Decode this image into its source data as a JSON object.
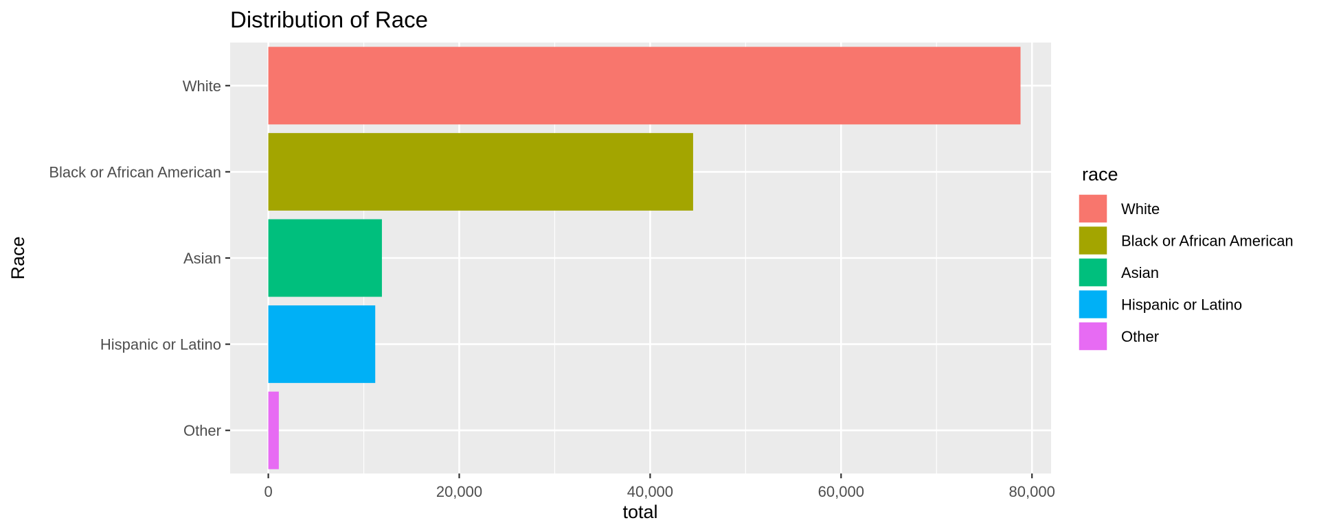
{
  "chart_data": {
    "type": "bar",
    "orientation": "horizontal",
    "title": "Distribution of Race",
    "xlabel": "total",
    "ylabel": "Race",
    "categories": [
      "White",
      "Black or African American",
      "Asian",
      "Hispanic or Latino",
      "Other"
    ],
    "values": [
      78800,
      44500,
      11900,
      11200,
      1100
    ],
    "colors": [
      "#F8766D",
      "#A3A500",
      "#00BF7D",
      "#00B0F6",
      "#E76BF3"
    ],
    "xlim": [
      -4000,
      82000
    ],
    "x_ticks": [
      0,
      20000,
      40000,
      60000,
      80000
    ],
    "x_tick_labels": [
      "0",
      "20,000",
      "40,000",
      "60,000",
      "80,000"
    ],
    "grid": true,
    "legend": {
      "title": "race",
      "position": "right",
      "items": [
        "White",
        "Black or African American",
        "Asian",
        "Hispanic or Latino",
        "Other"
      ]
    }
  }
}
